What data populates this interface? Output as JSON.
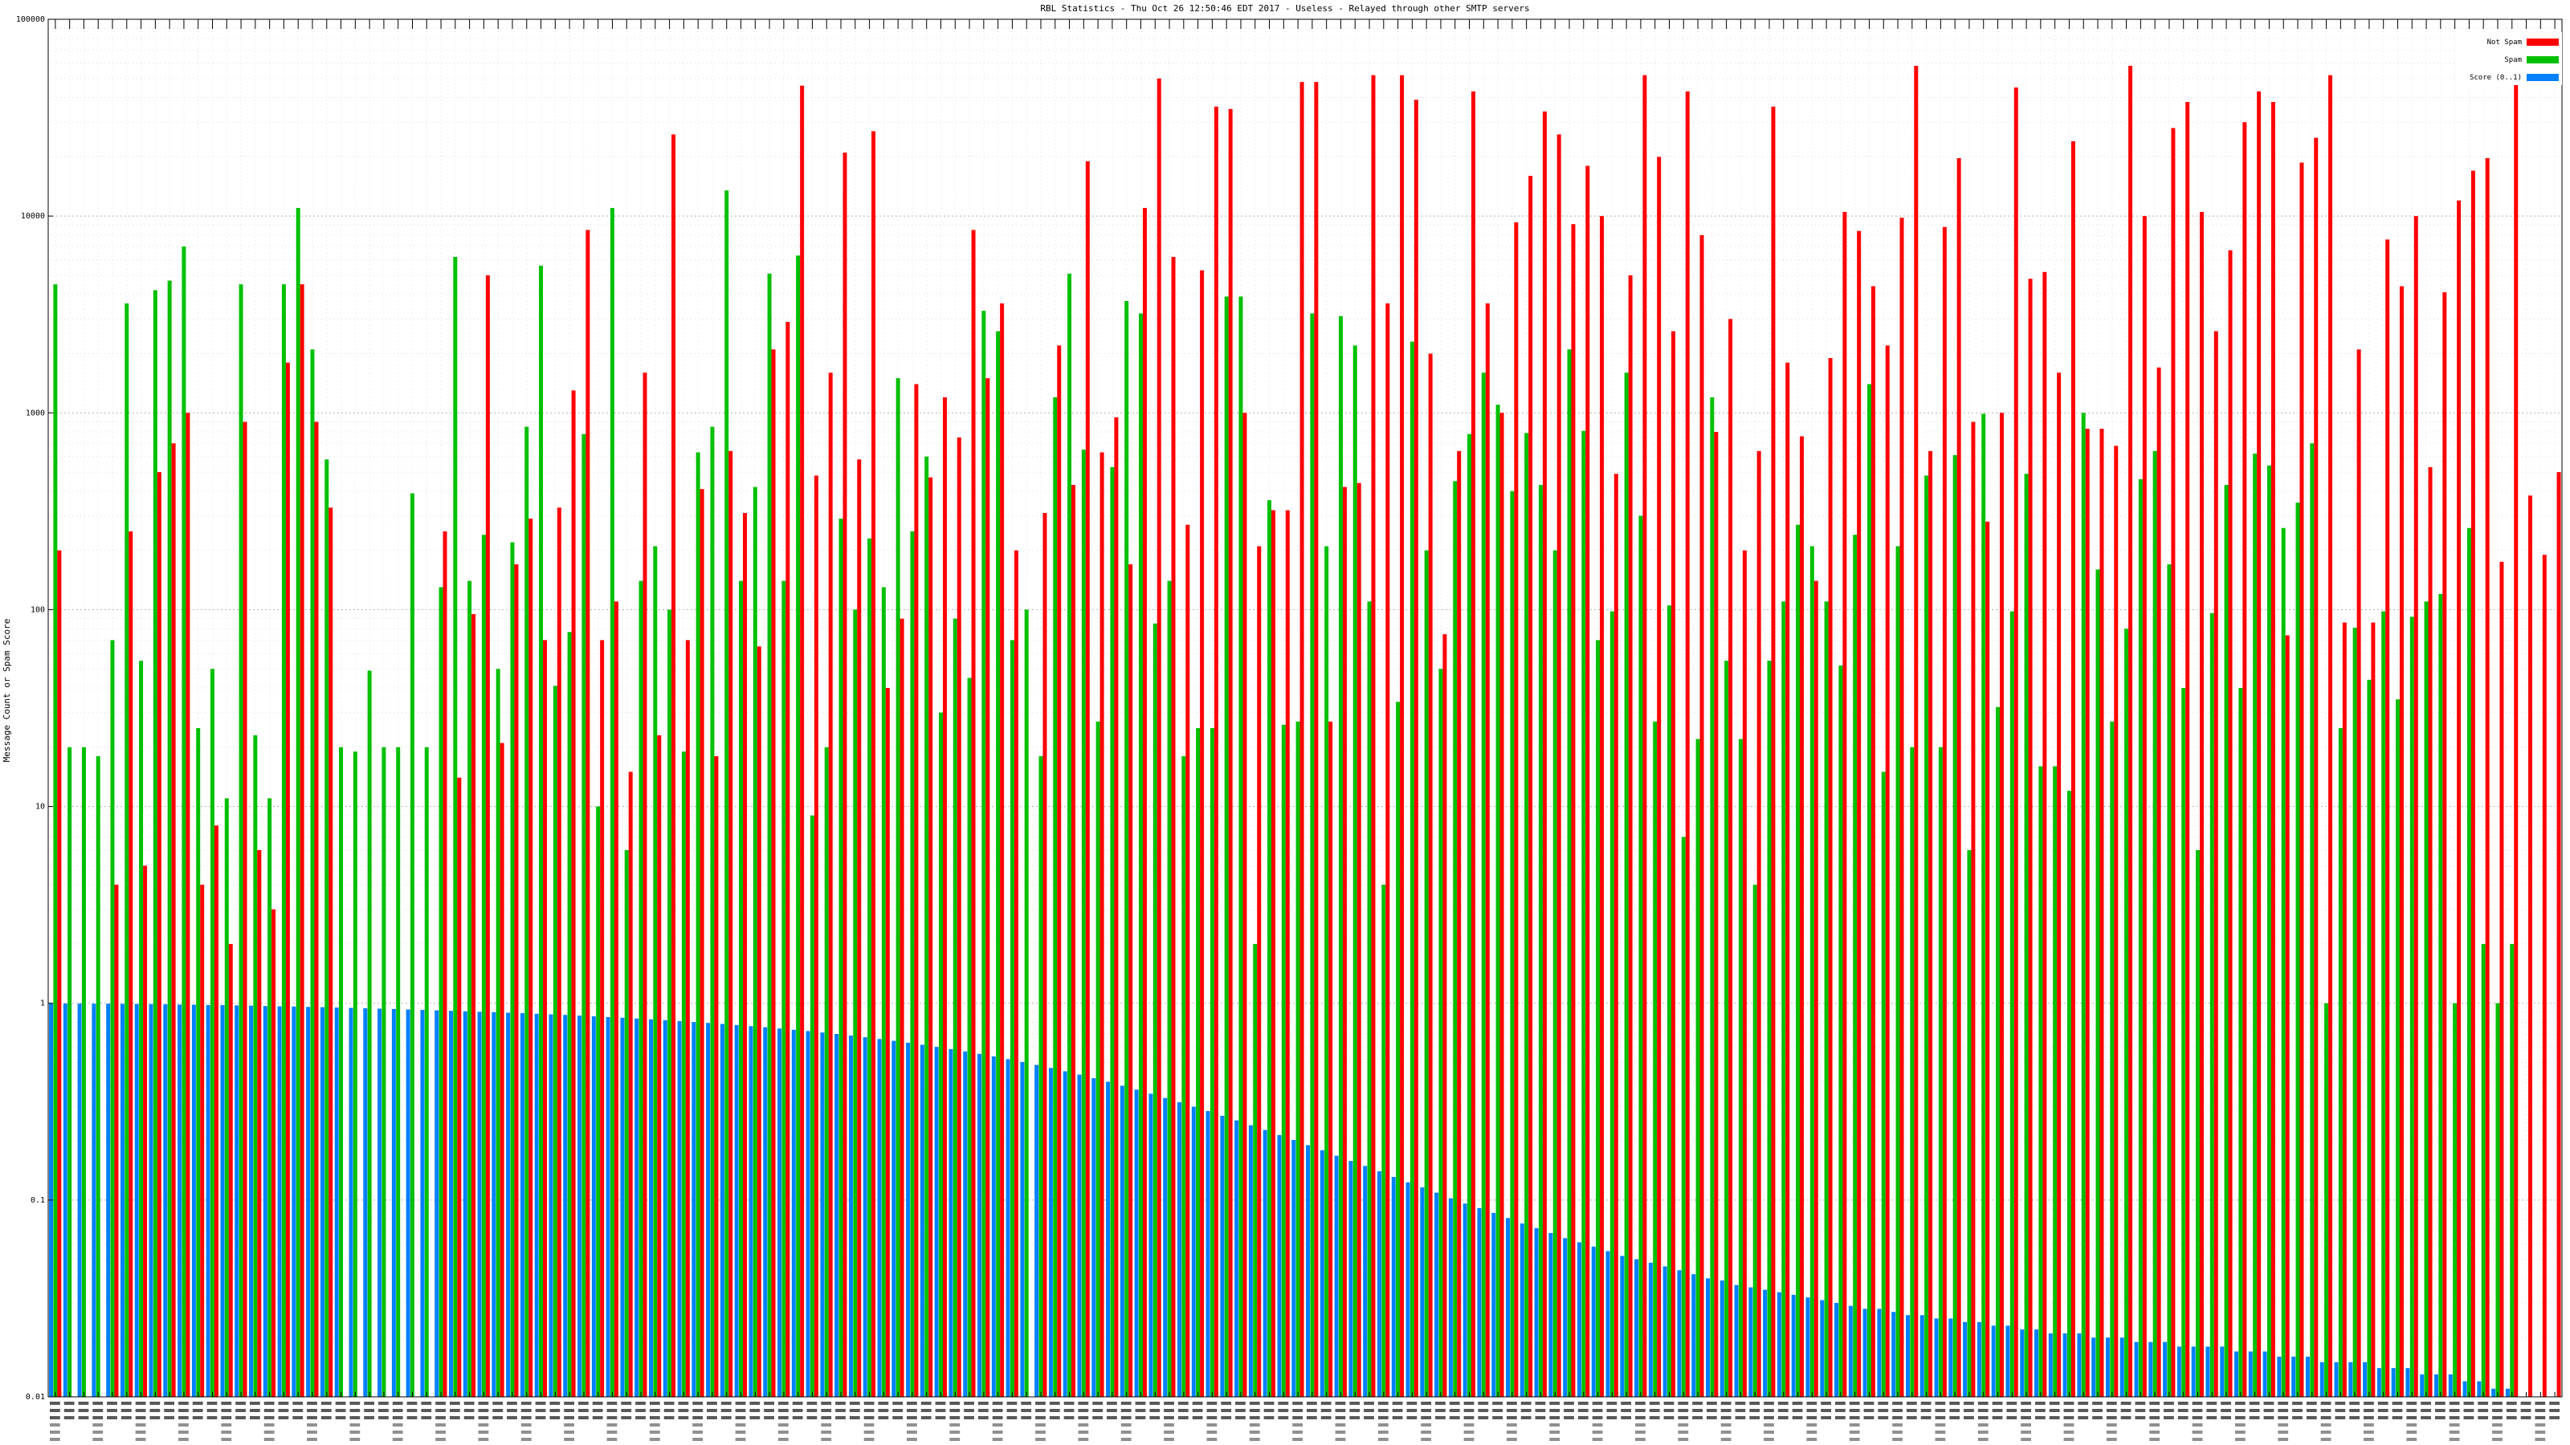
{
  "title": "RBL Statistics - Thu Oct 26 12:50:46 EDT 2017 - Useless - Relayed through other SMTP servers",
  "colors": {
    "not_spam": "#ff0000",
    "spam": "#00c000",
    "score": "#0080ff"
  },
  "chart_data": {
    "type": "bar",
    "title": "RBL Statistics - Thu Oct 26 12:50:46 EDT 2017 - Useless - Relayed through other SMTP servers",
    "xlabel": "",
    "ylabel": "Message Count or Spam Score",
    "yscale": "log",
    "ylim": [
      0.01,
      100000
    ],
    "y_ticks": [
      "0.01",
      "0.1",
      "1",
      "10",
      "100",
      "1000",
      "10000",
      "100000"
    ],
    "legend_position": "top-right",
    "grid": true,
    "x_tick_labels_legible": false,
    "series": [
      {
        "name": "Not Spam",
        "values": [
          200,
          0,
          0,
          0,
          4,
          250,
          5,
          500,
          700,
          1000,
          4,
          8,
          2,
          900,
          6,
          3,
          1800,
          4500,
          900,
          330,
          0,
          0,
          0,
          0,
          0,
          0,
          0,
          250,
          14,
          95,
          5000,
          21,
          170,
          290,
          70,
          330,
          1300,
          8500,
          70,
          110,
          15,
          1600,
          23,
          26000,
          70,
          410,
          18,
          640,
          310,
          65,
          2100,
          2900,
          46000,
          480,
          1600,
          21000,
          580,
          27000,
          40,
          90,
          1400,
          470,
          1200,
          750,
          8500,
          1500,
          3600,
          200,
          0,
          310,
          2200,
          430,
          19000,
          630,
          950,
          170,
          11000,
          50000,
          6200,
          270,
          5300,
          36000,
          35000,
          1000,
          210,
          320,
          320,
          48000,
          48000,
          27,
          420,
          440,
          52000,
          3600,
          52000,
          39000,
          2000,
          75,
          640,
          43000,
          3600,
          1000,
          9300,
          16000,
          34000,
          26000,
          9100,
          18000,
          10000,
          490,
          5000,
          52000,
          20000,
          2600,
          43000,
          8000,
          800,
          3000,
          200,
          640,
          36000,
          1800,
          760,
          140,
          1900,
          10500,
          8400,
          4400,
          2200,
          9800,
          58000,
          640,
          8800,
          19700,
          900,
          280,
          1000,
          45000,
          4800,
          5200,
          1600,
          24000,
          830,
          830,
          680,
          58000,
          10000,
          1700,
          28000,
          38000,
          10500,
          2600,
          6700,
          30000,
          43000,
          38000,
          74,
          18700,
          25000,
          52000,
          86,
          2100,
          86,
          7600,
          4400,
          10000,
          530,
          4100,
          12000,
          17000,
          19700,
          175,
          47000,
          380,
          190,
          500
        ]
      },
      {
        "name": "Spam",
        "values": [
          4500,
          20,
          20,
          18,
          70,
          3600,
          55,
          4200,
          4700,
          7000,
          25,
          50,
          11,
          4500,
          23,
          11,
          4500,
          11000,
          2100,
          580,
          20,
          19,
          49,
          20,
          20,
          390,
          20,
          130,
          6200,
          140,
          240,
          50,
          220,
          850,
          5600,
          41,
          77,
          780,
          10,
          11000,
          6,
          140,
          210,
          100,
          19,
          630,
          850,
          13500,
          140,
          420,
          5100,
          140,
          6300,
          9,
          20,
          290,
          100,
          230,
          130,
          1500,
          250,
          600,
          30,
          90,
          45,
          3300,
          2600,
          70,
          100,
          18,
          1200,
          5100,
          650,
          27,
          530,
          3700,
          3200,
          85,
          140,
          18,
          25,
          25,
          3900,
          3900,
          2,
          360,
          26,
          27,
          3200,
          210,
          3100,
          2200,
          110,
          4,
          34,
          2300,
          200,
          50,
          450,
          780,
          1600,
          1100,
          400,
          790,
          430,
          200,
          2100,
          810,
          70,
          98,
          1600,
          300,
          27,
          105,
          7,
          22,
          1200,
          55,
          22,
          4,
          55,
          110,
          270,
          210,
          110,
          52,
          240,
          1400,
          15,
          210,
          20,
          480,
          20,
          610,
          6,
          990,
          32,
          98,
          490,
          16,
          16,
          12,
          1000,
          160,
          27,
          80,
          460,
          640,
          170,
          40,
          6,
          96,
          430,
          40,
          620,
          540,
          260,
          350,
          700,
          1,
          25,
          81,
          44,
          98,
          35,
          92,
          110,
          120,
          1,
          260,
          2,
          1,
          2
        ]
      },
      {
        "name": "Score (0..1)",
        "values": [
          0.998,
          0.997,
          0.996,
          0.995,
          0.994,
          0.993,
          0.991,
          0.99,
          0.988,
          0.985,
          0.983,
          0.98,
          0.978,
          0.975,
          0.972,
          0.968,
          0.965,
          0.962,
          0.958,
          0.955,
          0.951,
          0.947,
          0.943,
          0.939,
          0.935,
          0.93,
          0.925,
          0.92,
          0.915,
          0.91,
          0.905,
          0.9,
          0.895,
          0.89,
          0.884,
          0.878,
          0.872,
          0.865,
          0.858,
          0.851,
          0.844,
          0.836,
          0.828,
          0.82,
          0.812,
          0.803,
          0.794,
          0.785,
          0.775,
          0.765,
          0.755,
          0.744,
          0.733,
          0.722,
          0.71,
          0.698,
          0.685,
          0.672,
          0.658,
          0.644,
          0.63,
          0.615,
          0.6,
          0.585,
          0.569,
          0.553,
          0.537,
          0.52,
          0.503,
          0.486,
          0.469,
          0.451,
          0.434,
          0.416,
          0.399,
          0.381,
          0.364,
          0.347,
          0.33,
          0.314,
          0.298,
          0.283,
          0.268,
          0.254,
          0.24,
          0.227,
          0.214,
          0.202,
          0.19,
          0.179,
          0.168,
          0.158,
          0.149,
          0.14,
          0.131,
          0.123,
          0.116,
          0.109,
          0.102,
          0.096,
          0.091,
          0.086,
          0.081,
          0.076,
          0.072,
          0.068,
          0.064,
          0.061,
          0.058,
          0.055,
          0.052,
          0.05,
          0.048,
          0.046,
          0.044,
          0.042,
          0.04,
          0.039,
          0.037,
          0.036,
          0.035,
          0.034,
          0.033,
          0.032,
          0.031,
          0.03,
          0.029,
          0.028,
          0.028,
          0.027,
          0.026,
          0.026,
          0.025,
          0.025,
          0.024,
          0.024,
          0.023,
          0.023,
          0.022,
          0.022,
          0.021,
          0.021,
          0.021,
          0.02,
          0.02,
          0.02,
          0.019,
          0.019,
          0.019,
          0.018,
          0.018,
          0.018,
          0.018,
          0.017,
          0.017,
          0.017,
          0.016,
          0.016,
          0.016,
          0.015,
          0.015,
          0.015,
          0.015,
          0.014,
          0.014,
          0.014,
          0.013,
          0.013,
          0.013,
          0.012,
          0.012,
          0.011,
          0.011,
          0.01,
          0.01,
          0.01,
          0.01,
          0.01,
          0.01,
          0.01
        ]
      }
    ]
  }
}
